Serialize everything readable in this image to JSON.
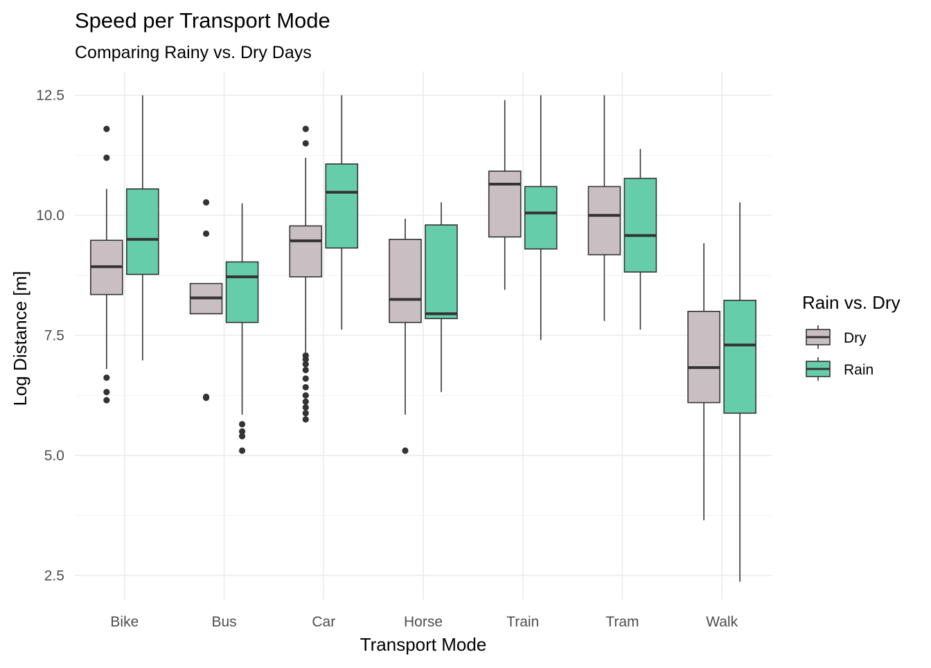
{
  "chart_data": {
    "type": "boxplot",
    "title": "Speed per Transport Mode",
    "subtitle": "Comparing Rainy vs. Dry Days",
    "xlabel": "Transport Mode",
    "ylabel": "Log Distance [m]",
    "ylim": [
      2.0,
      13.0
    ],
    "y_ticks": [
      2.5,
      5.0,
      7.5,
      10.0,
      12.5
    ],
    "y_tick_labels": [
      "2.5",
      "5.0",
      "7.5",
      "10.0",
      "12.5"
    ],
    "categories": [
      "Bike",
      "Bus",
      "Car",
      "Horse",
      "Train",
      "Tram",
      "Walk"
    ],
    "grid": true,
    "legend": {
      "title": "Rain vs. Dry",
      "position": "right"
    },
    "series": [
      {
        "name": "Dry",
        "color": "#c9bec2",
        "boxes": [
          {
            "whisker_low": 6.8,
            "q1": 8.35,
            "median": 8.93,
            "q3": 9.48,
            "whisker_high": 10.55,
            "outliers": [
              6.15,
              6.32,
              6.62,
              11.2,
              11.8
            ]
          },
          {
            "whisker_low": 7.95,
            "q1": 7.95,
            "median": 8.28,
            "q3": 8.58,
            "whisker_high": 8.58,
            "outliers": [
              6.2,
              6.22,
              9.62,
              10.27
            ]
          },
          {
            "whisker_low": 7.15,
            "q1": 8.72,
            "median": 9.47,
            "q3": 9.78,
            "whisker_high": 11.2,
            "outliers": [
              5.75,
              5.88,
              6.0,
              6.12,
              6.25,
              6.42,
              6.6,
              6.78,
              6.9,
              7.0,
              7.08,
              11.5,
              11.8
            ]
          },
          {
            "whisker_low": 5.85,
            "q1": 7.77,
            "median": 8.25,
            "q3": 9.5,
            "whisker_high": 9.93,
            "outliers": [
              5.1
            ]
          },
          {
            "whisker_low": 8.45,
            "q1": 9.55,
            "median": 10.65,
            "q3": 10.92,
            "whisker_high": 12.4,
            "outliers": []
          },
          {
            "whisker_low": 7.8,
            "q1": 9.18,
            "median": 10.0,
            "q3": 10.6,
            "whisker_high": 12.5,
            "outliers": []
          },
          {
            "whisker_low": 3.65,
            "q1": 6.1,
            "median": 6.83,
            "q3": 8.0,
            "whisker_high": 9.42,
            "outliers": []
          }
        ]
      },
      {
        "name": "Rain",
        "color": "#66cdaa",
        "boxes": [
          {
            "whisker_low": 6.98,
            "q1": 8.77,
            "median": 9.5,
            "q3": 10.55,
            "whisker_high": 12.5,
            "outliers": []
          },
          {
            "whisker_low": 5.85,
            "q1": 7.77,
            "median": 8.72,
            "q3": 9.03,
            "whisker_high": 10.25,
            "outliers": [
              5.1,
              5.4,
              5.5,
              5.65
            ]
          },
          {
            "whisker_low": 7.62,
            "q1": 9.32,
            "median": 10.48,
            "q3": 11.07,
            "whisker_high": 12.5,
            "outliers": []
          },
          {
            "whisker_low": 6.32,
            "q1": 7.85,
            "median": 7.95,
            "q3": 9.8,
            "whisker_high": 10.27,
            "outliers": []
          },
          {
            "whisker_low": 7.4,
            "q1": 9.3,
            "median": 10.05,
            "q3": 10.6,
            "whisker_high": 12.5,
            "outliers": []
          },
          {
            "whisker_low": 7.62,
            "q1": 8.82,
            "median": 9.58,
            "q3": 10.77,
            "whisker_high": 11.38,
            "outliers": []
          },
          {
            "whisker_low": 2.37,
            "q1": 5.88,
            "median": 7.3,
            "q3": 8.23,
            "whisker_high": 10.27,
            "outliers": []
          }
        ]
      }
    ]
  }
}
